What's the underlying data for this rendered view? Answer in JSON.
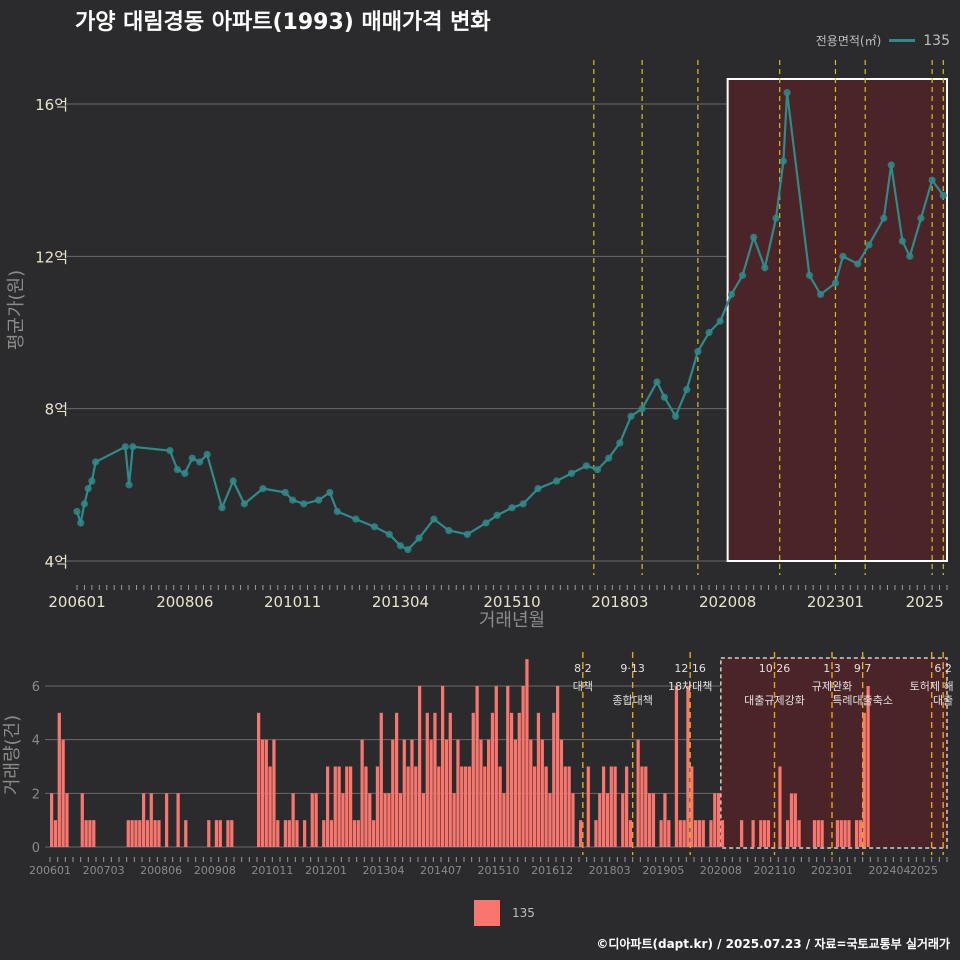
{
  "title": "가양 대림경동 아파트(1993) 매매가격 변화",
  "legend": {
    "title": "전용면적(㎡)",
    "item": "135"
  },
  "bottom_legend": {
    "item": "135"
  },
  "footer": "©디아파트(dapt.kr) / 2025.07.23 / 자료=국토교통부 실거래가",
  "colors": {
    "line": "#2e8b8a",
    "bar": "#f8766d",
    "policy_line_top": "#d4c21a",
    "policy_line_bottom": "#e6a817",
    "highlight": "#4a2426"
  },
  "chart_data": [
    {
      "type": "line",
      "xlabel": "거래년월",
      "ylabel": "평균가(원)",
      "x_ticks": [
        "200601",
        "200806",
        "201011",
        "201304",
        "201510",
        "201803",
        "202008",
        "202301",
        "2025"
      ],
      "y_ticks": [
        "4억",
        "8억",
        "12억",
        "16억"
      ],
      "ylim": [
        4,
        16.5
      ],
      "unit": "억",
      "highlight_range": [
        "202008",
        "202507"
      ],
      "series": [
        {
          "name": "135",
          "points": [
            [
              "2006-01",
              5.3
            ],
            [
              "2006-02",
              5.0
            ],
            [
              "2006-03",
              5.5
            ],
            [
              "2006-04",
              5.9
            ],
            [
              "2006-05",
              6.1
            ],
            [
              "2006-06",
              6.6
            ],
            [
              "2007-02",
              7.0
            ],
            [
              "2007-03",
              6.0
            ],
            [
              "2007-04",
              7.0
            ],
            [
              "2008-02",
              6.9
            ],
            [
              "2008-04",
              6.4
            ],
            [
              "2008-06",
              6.3
            ],
            [
              "2008-08",
              6.7
            ],
            [
              "2008-10",
              6.6
            ],
            [
              "2008-12",
              6.8
            ],
            [
              "2009-04",
              5.4
            ],
            [
              "2009-07",
              6.1
            ],
            [
              "2009-10",
              5.5
            ],
            [
              "2010-03",
              5.9
            ],
            [
              "2010-09",
              5.8
            ],
            [
              "2010-11",
              5.6
            ],
            [
              "2011-02",
              5.5
            ],
            [
              "2011-06",
              5.6
            ],
            [
              "2011-09",
              5.8
            ],
            [
              "2011-11",
              5.3
            ],
            [
              "2012-04",
              5.1
            ],
            [
              "2012-09",
              4.9
            ],
            [
              "2013-01",
              4.7
            ],
            [
              "2013-04",
              4.4
            ],
            [
              "2013-06",
              4.3
            ],
            [
              "2013-09",
              4.6
            ],
            [
              "2014-01",
              5.1
            ],
            [
              "2014-05",
              4.8
            ],
            [
              "2014-10",
              4.7
            ],
            [
              "2015-03",
              5.0
            ],
            [
              "2015-06",
              5.2
            ],
            [
              "2015-10",
              5.4
            ],
            [
              "2016-01",
              5.5
            ],
            [
              "2016-05",
              5.9
            ],
            [
              "2016-10",
              6.1
            ],
            [
              "2017-02",
              6.3
            ],
            [
              "2017-06",
              6.5
            ],
            [
              "2017-09",
              6.4
            ],
            [
              "2017-12",
              6.7
            ],
            [
              "2018-03",
              7.1
            ],
            [
              "2018-06",
              7.8
            ],
            [
              "2018-09",
              8.0
            ],
            [
              "2019-01",
              8.7
            ],
            [
              "2019-03",
              8.3
            ],
            [
              "2019-06",
              7.8
            ],
            [
              "2019-09",
              8.5
            ],
            [
              "2019-12",
              9.5
            ],
            [
              "2020-03",
              10.0
            ],
            [
              "2020-06",
              10.3
            ],
            [
              "2020-09",
              11.0
            ],
            [
              "2020-12",
              11.5
            ],
            [
              "2021-03",
              12.5
            ],
            [
              "2021-06",
              11.7
            ],
            [
              "2021-09",
              13.0
            ],
            [
              "2021-11",
              14.5
            ],
            [
              "2021-12",
              16.3
            ],
            [
              "2022-06",
              11.5
            ],
            [
              "2022-09",
              11.0
            ],
            [
              "2023-01",
              11.3
            ],
            [
              "2023-03",
              12.0
            ],
            [
              "2023-07",
              11.8
            ],
            [
              "2023-10",
              12.3
            ],
            [
              "2024-02",
              13.0
            ],
            [
              "2024-04",
              14.4
            ],
            [
              "2024-07",
              12.4
            ],
            [
              "2024-09",
              12.0
            ],
            [
              "2024-12",
              13.0
            ],
            [
              "2025-03",
              14.0
            ],
            [
              "2025-06",
              13.6
            ]
          ]
        }
      ]
    },
    {
      "type": "bar",
      "xlabel": "",
      "ylabel": "거래량(건)",
      "x_ticks": [
        "200601",
        "200703",
        "200806",
        "200908",
        "201011",
        "201201",
        "201304",
        "201407",
        "201510",
        "201612",
        "201803",
        "201905",
        "202008",
        "202110",
        "202301",
        "202404",
        "2025"
      ],
      "y_ticks": [
        "0",
        "2",
        "4",
        "6"
      ],
      "ylim": [
        0,
        7
      ],
      "highlight_range": [
        "202008",
        "202507"
      ],
      "series": [
        {
          "name": "135",
          "monthly": [
            2,
            1,
            5,
            4,
            2,
            0,
            0,
            0,
            2,
            1,
            1,
            1,
            0,
            0,
            0,
            0,
            0,
            0,
            0,
            0,
            1,
            1,
            1,
            1,
            2,
            1,
            2,
            1,
            1,
            0,
            2,
            0,
            0,
            2,
            0,
            1,
            0,
            0,
            0,
            0,
            0,
            1,
            0,
            1,
            1,
            0,
            1,
            1,
            0,
            0,
            0,
            0,
            0,
            0,
            5,
            4,
            4,
            3,
            4,
            1,
            0,
            1,
            1,
            2,
            1,
            0,
            1,
            0,
            2,
            2,
            0,
            1,
            3,
            1,
            3,
            3,
            2,
            3,
            3,
            1,
            1,
            4,
            3,
            2,
            1,
            3,
            5,
            2,
            2,
            4,
            5,
            2,
            4,
            3,
            4,
            3,
            6,
            2,
            5,
            4,
            5,
            3,
            6,
            4,
            5,
            2,
            4,
            3,
            3,
            3,
            5,
            6,
            4,
            3,
            4,
            5,
            6,
            3,
            2,
            6,
            5,
            4,
            5,
            6,
            7,
            4,
            3,
            5,
            4,
            3,
            2,
            5,
            6,
            4,
            3,
            3,
            2,
            0,
            1,
            0,
            3,
            0,
            1,
            2,
            3,
            2,
            3,
            3,
            0,
            2,
            3,
            1,
            0,
            4,
            3,
            3,
            2,
            2,
            0,
            1,
            2,
            1,
            0,
            6,
            1,
            1,
            6,
            3,
            1,
            1,
            1,
            0,
            1,
            2,
            2,
            1,
            0,
            0,
            0,
            0,
            1,
            0,
            0,
            1,
            0,
            1,
            1,
            1,
            0,
            0,
            3,
            0,
            1,
            2,
            2,
            1,
            0,
            0,
            0,
            1,
            1,
            1,
            0,
            0,
            0,
            1,
            1,
            1,
            1,
            0,
            1,
            1,
            5,
            6
          ]
        }
      ]
    }
  ],
  "policy_events_top": [
    "2017-08",
    "2018-09",
    "2019-12",
    "2021-10",
    "2023-01",
    "2023-09",
    "2025-03",
    "2025-06"
  ],
  "policy_events_bottom": [
    {
      "date": "2017-08",
      "label_top": "8·2",
      "label_bottom": "대책"
    },
    {
      "date": "2018-09",
      "label_top": "9·13",
      "label_bottom": "종합대책"
    },
    {
      "date": "2019-12",
      "label_top": "12·16",
      "label_bottom": "18차대책"
    },
    {
      "date": "2021-10",
      "label_top": "10·26",
      "label_bottom": "대출규제강화"
    },
    {
      "date": "2023-01",
      "label_top": "1·3",
      "label_bottom": "규제완화"
    },
    {
      "date": "2023-09",
      "label_top": "9·7",
      "label_bottom": "특례대출축소"
    },
    {
      "date": "2025-03",
      "label_top": "",
      "label_bottom": "토허제 해"
    },
    {
      "date": "2025-06",
      "label_top": "6·2",
      "label_bottom": "대출"
    }
  ]
}
